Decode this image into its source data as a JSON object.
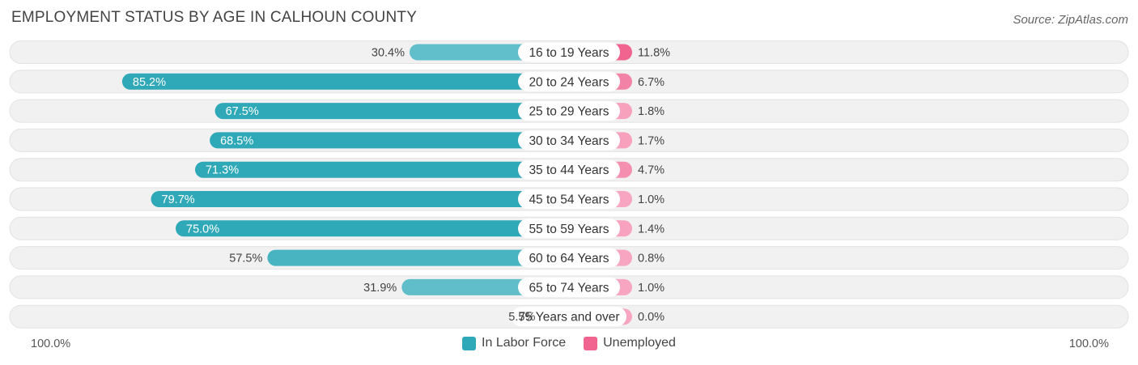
{
  "title": "EMPLOYMENT STATUS BY AGE IN CALHOUN COUNTY",
  "source": "Source: ZipAtlas.com",
  "colors": {
    "labor_dark": "#2fa8b8",
    "labor_light": "#6cc4cf",
    "unemployed_dark": "#f0648f",
    "unemployed_light": "#f7a5c0",
    "row_bg": "#f1f1f1"
  },
  "axis": {
    "left_label": "100.0%",
    "right_label": "100.0%"
  },
  "legend": [
    {
      "label": "In Labor Force",
      "color": "#2fa8b8",
      "icon": "labor-force-swatch"
    },
    {
      "label": "Unemployed",
      "color": "#f0648f",
      "icon": "unemployed-swatch"
    }
  ],
  "chart_data": {
    "type": "bar",
    "orientation": "diverging-horizontal",
    "title": "EMPLOYMENT STATUS BY AGE IN CALHOUN COUNTY",
    "xlim": [
      -100,
      100
    ],
    "categories": [
      "16 to 19 Years",
      "20 to 24 Years",
      "25 to 29 Years",
      "30 to 34 Years",
      "35 to 44 Years",
      "45 to 54 Years",
      "55 to 59 Years",
      "60 to 64 Years",
      "65 to 74 Years",
      "75 Years and over"
    ],
    "series": [
      {
        "name": "In Labor Force",
        "values": [
          30.4,
          85.2,
          67.5,
          68.5,
          71.3,
          79.7,
          75.0,
          57.5,
          31.9,
          5.5
        ]
      },
      {
        "name": "Unemployed",
        "values": [
          11.8,
          6.7,
          1.8,
          1.7,
          4.7,
          1.0,
          1.4,
          0.8,
          1.0,
          0.0
        ]
      }
    ]
  }
}
